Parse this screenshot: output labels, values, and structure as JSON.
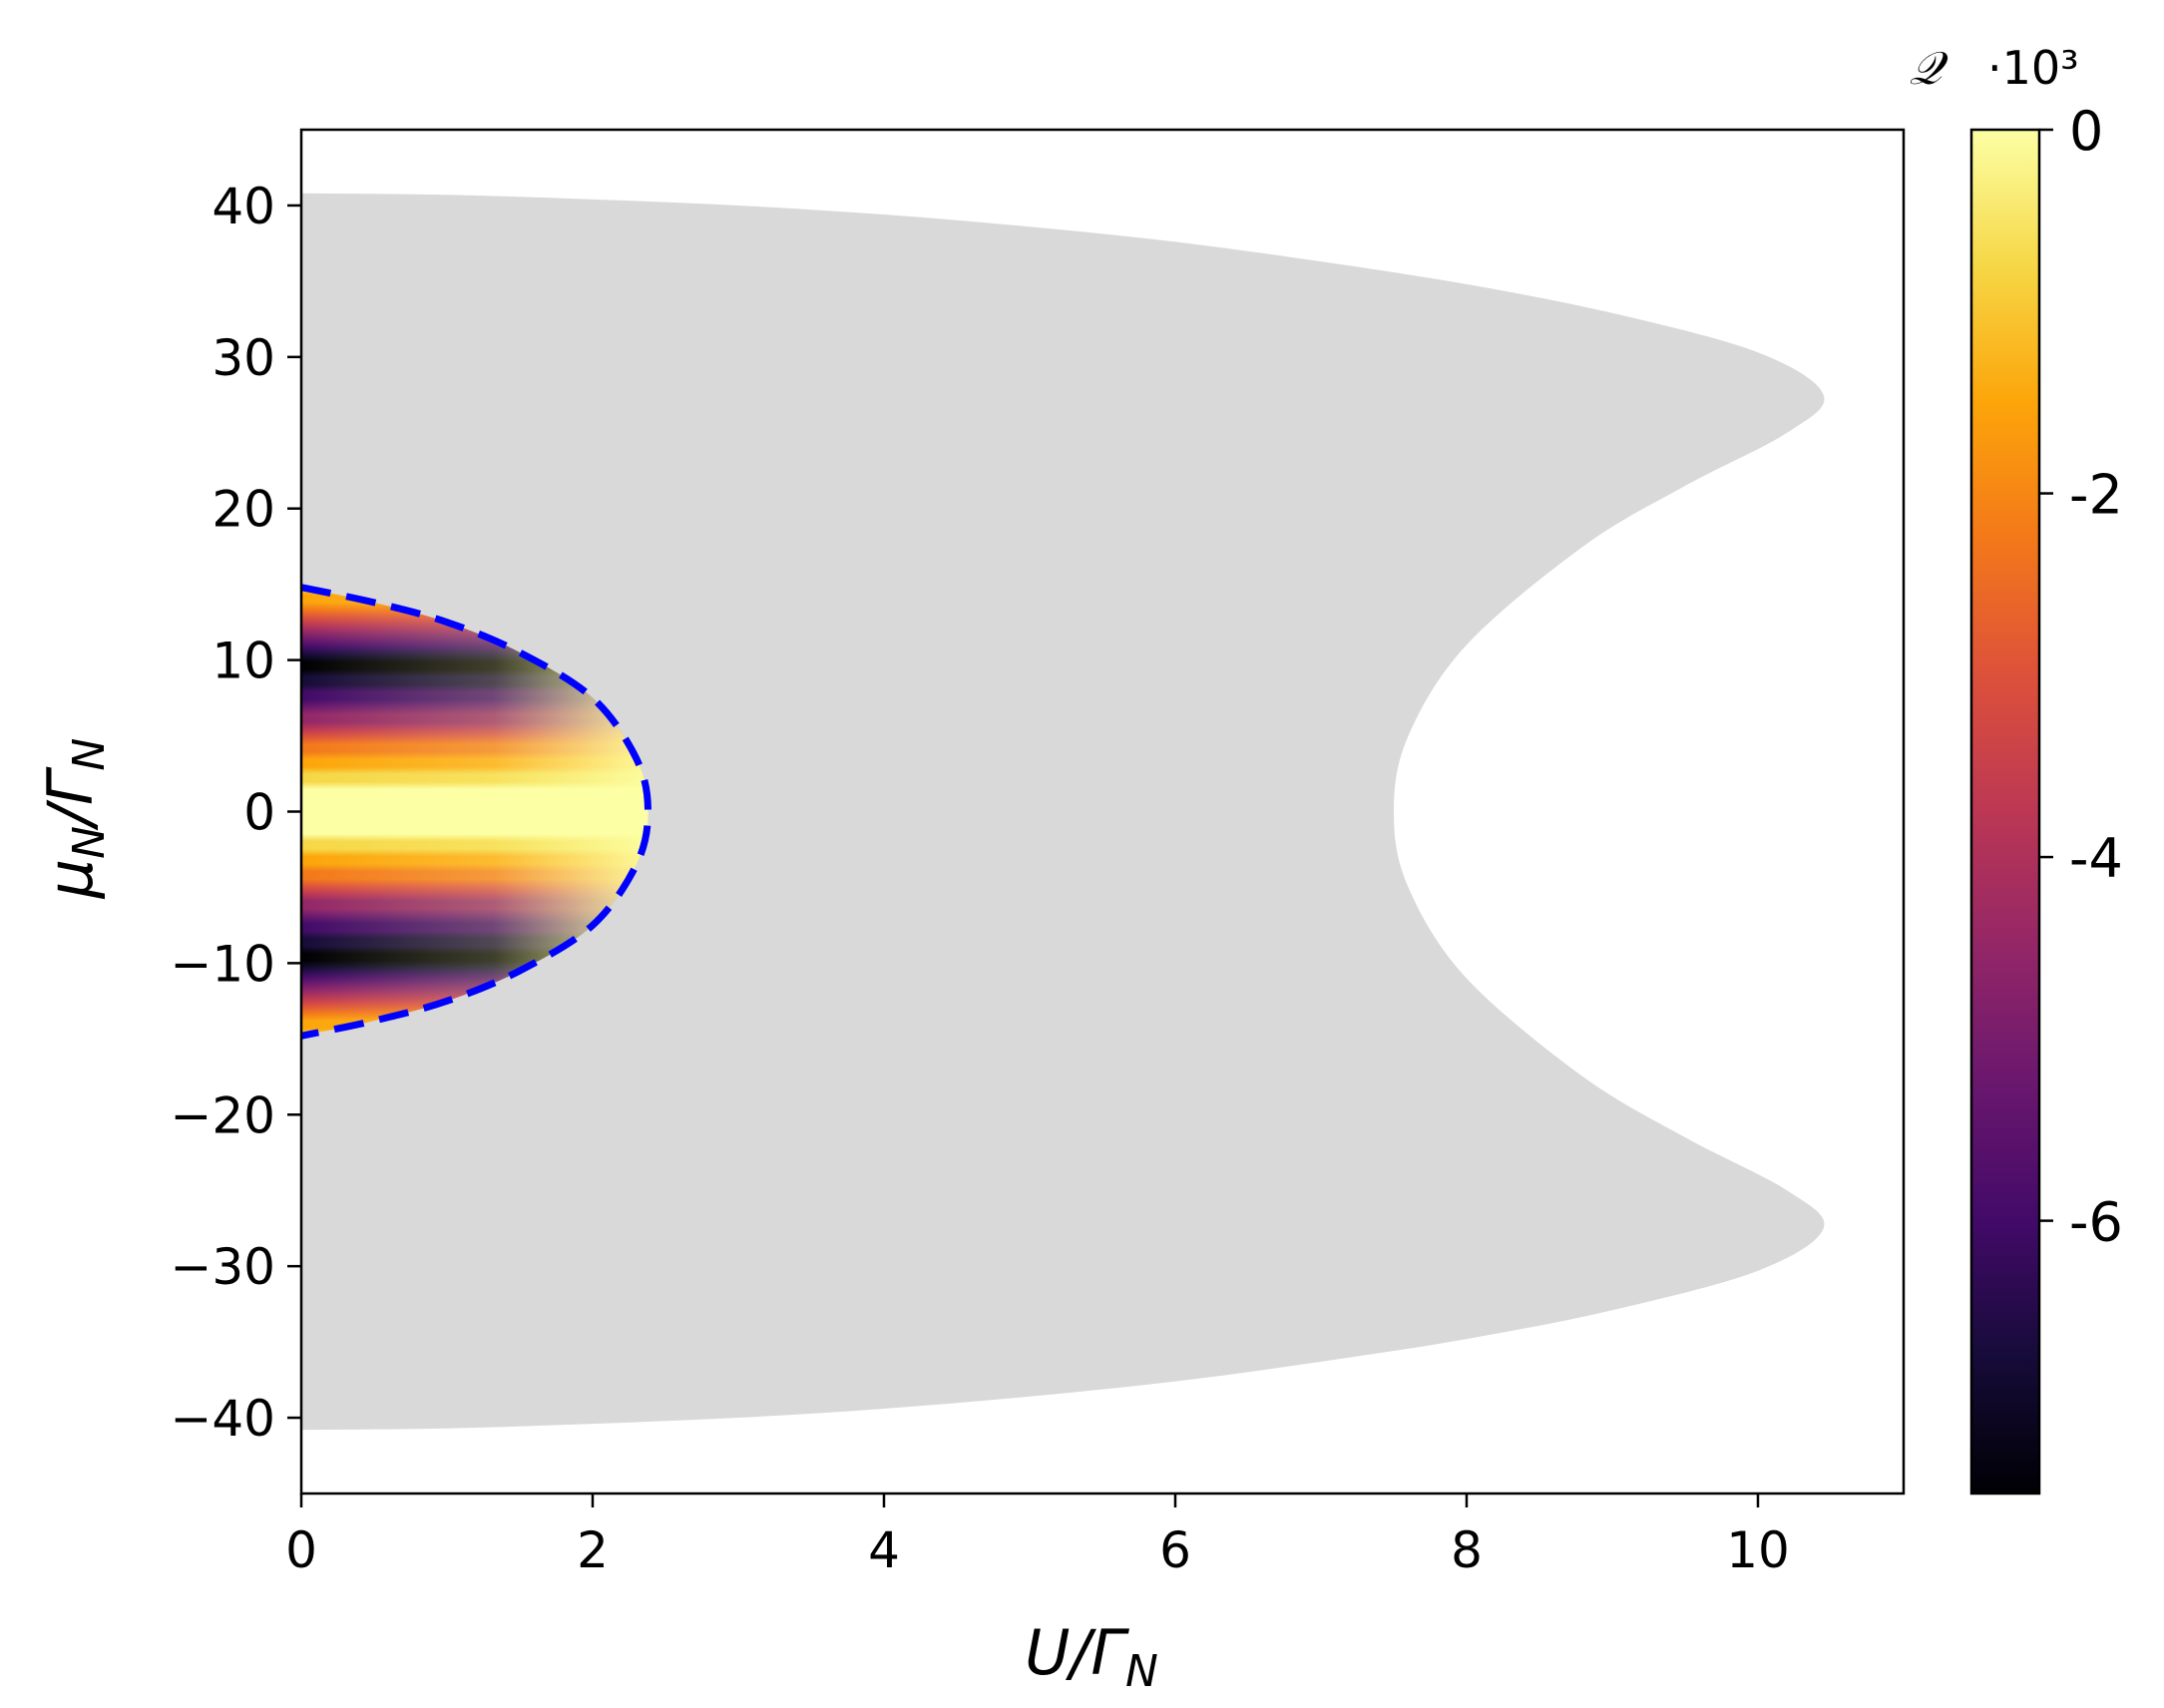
{
  "chart_data": {
    "type": "heatmap",
    "xlabel": "U/Γ_N",
    "ylabel": "μ_N/Γ_N",
    "xlim": [
      0,
      11
    ],
    "ylim": [
      -45,
      45
    ],
    "x_ticks": [
      0,
      2,
      4,
      6,
      8,
      10
    ],
    "x_tick_labels": [
      "0",
      "2",
      "4",
      "6",
      "8",
      "10"
    ],
    "y_ticks": [
      -40,
      -30,
      -20,
      -10,
      0,
      10,
      20,
      30,
      40
    ],
    "y_tick_labels": [
      "−40",
      "−30",
      "−20",
      "−10",
      "0",
      "10",
      "20",
      "30",
      "40"
    ],
    "grid": false,
    "colormap": "inferno",
    "colorbar": {
      "title": "𝒬",
      "multiplier": "·10³",
      "range": [
        -7.5,
        0
      ],
      "ticks": [
        0,
        -2,
        -4,
        -6
      ],
      "tick_labels": [
        "0",
        "-2",
        "-4",
        "-6"
      ]
    },
    "gray_region": {
      "color": "#d9d9d9",
      "boundary_upper": [
        [
          0,
          40.8
        ],
        [
          1,
          40.7
        ],
        [
          2,
          40.4
        ],
        [
          3,
          40.0
        ],
        [
          4,
          39.4
        ],
        [
          5,
          38.6
        ],
        [
          6,
          37.6
        ],
        [
          7,
          36.3
        ],
        [
          8,
          34.8
        ],
        [
          9,
          32.9
        ],
        [
          10,
          30.3
        ],
        [
          10.45,
          27.5
        ],
        [
          10.2,
          25.0
        ],
        [
          9.5,
          21.5
        ],
        [
          8.8,
          17.5
        ],
        [
          8.0,
          11.0
        ],
        [
          7.6,
          5.0
        ],
        [
          7.5,
          0
        ]
      ],
      "symmetric_about_zero": true
    },
    "colored_region": {
      "boundary": [
        [
          0,
          14.8
        ],
        [
          0.5,
          13.8
        ],
        [
          1.0,
          12.5
        ],
        [
          1.5,
          10.5
        ],
        [
          2.0,
          7.5
        ],
        [
          2.3,
          3.5
        ],
        [
          2.38,
          0
        ]
      ],
      "symmetric_about_zero": true,
      "minima_at": [
        [
          0,
          10
        ],
        [
          0,
          -10
        ]
      ],
      "maximum_band_at_mu": 0
    },
    "boundary_line": {
      "color": "#0000ff",
      "style": "dashed"
    }
  }
}
